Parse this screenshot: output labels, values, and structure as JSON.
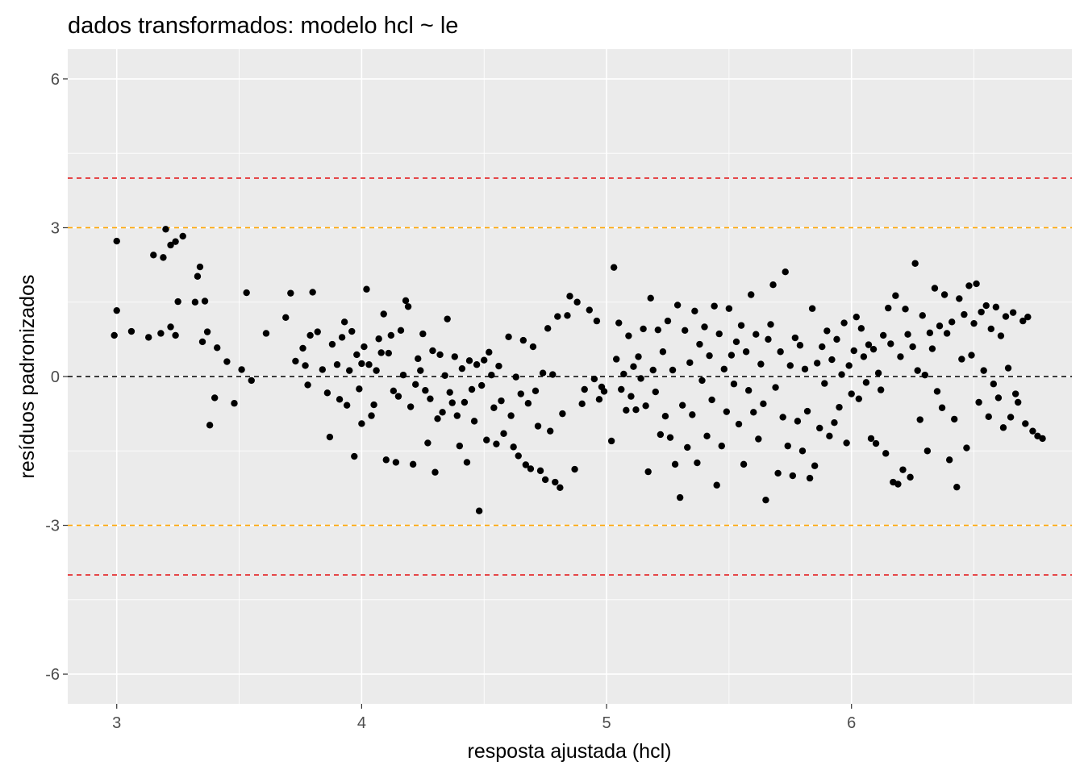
{
  "colors": {
    "panel_background": "#EBEBEB",
    "grid": "#FFFFFF",
    "points": "#000000",
    "ref_zero": "#000000",
    "ref_3": "#FFA500",
    "ref_4": "#E41A1C",
    "tick_text": "#4D4D4D"
  },
  "chart_data": {
    "type": "scatter",
    "title": "dados transformados: modelo hcl ~ le",
    "xlabel": "resposta ajustada (hcl)",
    "ylabel": "resíduos padronizados",
    "xlim": [
      2.8,
      6.9
    ],
    "ylim": [
      -6.6,
      6.6
    ],
    "x_ticks": [
      3,
      4,
      5,
      6
    ],
    "x_tick_labels": [
      "3",
      "4",
      "5",
      "6"
    ],
    "y_ticks": [
      -6,
      -3,
      0,
      3,
      6
    ],
    "y_tick_labels": [
      "-6",
      "-3",
      "0",
      "3",
      "6"
    ],
    "grid": true,
    "legend": "none",
    "reference_lines": [
      {
        "y": 0,
        "color": "#000000",
        "style": "dashed"
      },
      {
        "y": 3,
        "color": "#FFA500",
        "style": "dashed"
      },
      {
        "y": -3,
        "color": "#FFA500",
        "style": "dashed"
      },
      {
        "y": 4,
        "color": "#E41A1C",
        "style": "dashed"
      },
      {
        "y": -4,
        "color": "#E41A1C",
        "style": "dashed"
      }
    ],
    "points": [
      [
        2.99,
        0.83
      ],
      [
        3.0,
        2.73
      ],
      [
        3.0,
        1.33
      ],
      [
        3.06,
        0.91
      ],
      [
        3.13,
        0.79
      ],
      [
        3.18,
        0.87
      ],
      [
        3.15,
        2.45
      ],
      [
        3.19,
        2.4
      ],
      [
        3.2,
        2.97
      ],
      [
        3.22,
        2.65
      ],
      [
        3.24,
        2.72
      ],
      [
        3.27,
        2.83
      ],
      [
        3.22,
        1.0
      ],
      [
        3.25,
        1.51
      ],
      [
        3.24,
        0.83
      ],
      [
        3.32,
        1.5
      ],
      [
        3.33,
        2.02
      ],
      [
        3.34,
        2.21
      ],
      [
        3.35,
        0.7
      ],
      [
        3.36,
        1.52
      ],
      [
        3.37,
        0.9
      ],
      [
        3.38,
        -0.98
      ],
      [
        3.4,
        -0.43
      ],
      [
        3.41,
        0.58
      ],
      [
        3.45,
        0.3
      ],
      [
        3.48,
        -0.54
      ],
      [
        3.51,
        0.14
      ],
      [
        3.53,
        1.69
      ],
      [
        3.55,
        -0.08
      ],
      [
        3.61,
        0.87
      ],
      [
        3.69,
        1.19
      ],
      [
        3.71,
        1.68
      ],
      [
        3.73,
        0.31
      ],
      [
        3.76,
        0.57
      ],
      [
        3.77,
        0.22
      ],
      [
        3.78,
        -0.17
      ],
      [
        3.79,
        0.83
      ],
      [
        3.8,
        1.7
      ],
      [
        3.82,
        0.9
      ],
      [
        3.84,
        0.14
      ],
      [
        3.86,
        -0.33
      ],
      [
        3.87,
        -1.22
      ],
      [
        3.88,
        0.65
      ],
      [
        3.9,
        0.24
      ],
      [
        3.91,
        -0.46
      ],
      [
        3.92,
        0.79
      ],
      [
        3.93,
        1.1
      ],
      [
        3.94,
        -0.58
      ],
      [
        3.95,
        0.12
      ],
      [
        3.96,
        0.91
      ],
      [
        3.97,
        -1.61
      ],
      [
        3.98,
        0.44
      ],
      [
        3.99,
        -0.25
      ],
      [
        4.0,
        0.26
      ],
      [
        4.0,
        -0.95
      ],
      [
        4.01,
        0.6
      ],
      [
        4.02,
        1.76
      ],
      [
        4.03,
        0.24
      ],
      [
        4.04,
        -0.79
      ],
      [
        4.05,
        -0.57
      ],
      [
        4.06,
        0.12
      ],
      [
        4.07,
        0.76
      ],
      [
        4.08,
        0.48
      ],
      [
        4.09,
        1.26
      ],
      [
        4.1,
        -1.68
      ],
      [
        4.11,
        0.47
      ],
      [
        4.12,
        0.83
      ],
      [
        4.13,
        -0.29
      ],
      [
        4.14,
        -1.73
      ],
      [
        4.15,
        -0.4
      ],
      [
        4.16,
        0.93
      ],
      [
        4.17,
        0.03
      ],
      [
        4.18,
        1.53
      ],
      [
        4.19,
        1.41
      ],
      [
        4.2,
        -0.61
      ],
      [
        4.21,
        -1.77
      ],
      [
        4.22,
        -0.16
      ],
      [
        4.23,
        0.36
      ],
      [
        4.24,
        0.12
      ],
      [
        4.25,
        0.86
      ],
      [
        4.26,
        -0.28
      ],
      [
        4.27,
        -1.34
      ],
      [
        4.28,
        -0.45
      ],
      [
        4.29,
        0.52
      ],
      [
        4.3,
        -1.93
      ],
      [
        4.31,
        -0.85
      ],
      [
        4.32,
        0.44
      ],
      [
        4.33,
        -0.72
      ],
      [
        4.34,
        0.02
      ],
      [
        4.35,
        1.16
      ],
      [
        4.36,
        -0.32
      ],
      [
        4.37,
        -0.53
      ],
      [
        4.38,
        0.4
      ],
      [
        4.39,
        -0.79
      ],
      [
        4.4,
        -1.4
      ],
      [
        4.41,
        0.16
      ],
      [
        4.42,
        -0.52
      ],
      [
        4.43,
        -1.73
      ],
      [
        4.44,
        0.32
      ],
      [
        4.45,
        -0.26
      ],
      [
        4.46,
        -0.9
      ],
      [
        4.47,
        0.24
      ],
      [
        4.48,
        -2.71
      ],
      [
        4.49,
        -0.18
      ],
      [
        4.5,
        0.33
      ],
      [
        4.51,
        -1.28
      ],
      [
        4.52,
        0.49
      ],
      [
        4.53,
        0.03
      ],
      [
        4.54,
        -0.63
      ],
      [
        4.55,
        -1.36
      ],
      [
        4.56,
        0.21
      ],
      [
        4.57,
        -0.49
      ],
      [
        4.58,
        -1.15
      ],
      [
        4.6,
        0.8
      ],
      [
        4.61,
        -0.79
      ],
      [
        4.62,
        -1.42
      ],
      [
        4.63,
        -0.01
      ],
      [
        4.64,
        -1.6
      ],
      [
        4.65,
        -0.35
      ],
      [
        4.66,
        0.73
      ],
      [
        4.67,
        -1.78
      ],
      [
        4.68,
        -0.54
      ],
      [
        4.69,
        -1.86
      ],
      [
        4.7,
        0.6
      ],
      [
        4.71,
        -0.29
      ],
      [
        4.72,
        -1.0
      ],
      [
        4.73,
        -1.9
      ],
      [
        4.74,
        0.07
      ],
      [
        4.75,
        -2.08
      ],
      [
        4.76,
        0.97
      ],
      [
        4.77,
        -1.1
      ],
      [
        4.78,
        0.04
      ],
      [
        4.79,
        -2.13
      ],
      [
        4.8,
        1.21
      ],
      [
        4.81,
        -2.24
      ],
      [
        4.82,
        -0.75
      ],
      [
        4.84,
        1.23
      ],
      [
        4.85,
        1.62
      ],
      [
        4.87,
        -1.87
      ],
      [
        4.88,
        1.5
      ],
      [
        4.9,
        -0.55
      ],
      [
        4.91,
        -0.26
      ],
      [
        4.93,
        1.34
      ],
      [
        4.95,
        -0.05
      ],
      [
        4.96,
        1.12
      ],
      [
        4.97,
        -0.46
      ],
      [
        4.98,
        -0.21
      ],
      [
        4.99,
        -0.3
      ],
      [
        5.02,
        -1.3
      ],
      [
        5.03,
        2.2
      ],
      [
        5.04,
        0.35
      ],
      [
        5.05,
        1.08
      ],
      [
        5.06,
        -0.26
      ],
      [
        5.07,
        0.05
      ],
      [
        5.08,
        -0.68
      ],
      [
        5.09,
        0.82
      ],
      [
        5.1,
        -0.4
      ],
      [
        5.11,
        0.2
      ],
      [
        5.12,
        -0.67
      ],
      [
        5.13,
        0.4
      ],
      [
        5.14,
        -0.04
      ],
      [
        5.15,
        0.96
      ],
      [
        5.16,
        -0.59
      ],
      [
        5.17,
        -1.92
      ],
      [
        5.18,
        1.58
      ],
      [
        5.19,
        0.13
      ],
      [
        5.2,
        -0.31
      ],
      [
        5.21,
        0.94
      ],
      [
        5.22,
        -1.17
      ],
      [
        5.23,
        0.5
      ],
      [
        5.24,
        -0.8
      ],
      [
        5.25,
        1.12
      ],
      [
        5.26,
        -1.23
      ],
      [
        5.27,
        0.13
      ],
      [
        5.28,
        -1.77
      ],
      [
        5.29,
        1.44
      ],
      [
        5.3,
        -2.44
      ],
      [
        5.31,
        -0.58
      ],
      [
        5.32,
        0.93
      ],
      [
        5.33,
        -1.43
      ],
      [
        5.34,
        0.28
      ],
      [
        5.35,
        -0.77
      ],
      [
        5.36,
        1.32
      ],
      [
        5.37,
        -1.74
      ],
      [
        5.38,
        0.65
      ],
      [
        5.39,
        -0.08
      ],
      [
        5.4,
        1.0
      ],
      [
        5.41,
        -1.2
      ],
      [
        5.42,
        0.42
      ],
      [
        5.43,
        -0.47
      ],
      [
        5.44,
        1.42
      ],
      [
        5.45,
        -2.19
      ],
      [
        5.46,
        0.86
      ],
      [
        5.47,
        -1.4
      ],
      [
        5.48,
        0.15
      ],
      [
        5.49,
        -0.71
      ],
      [
        5.5,
        1.37
      ],
      [
        5.51,
        0.43
      ],
      [
        5.52,
        -0.15
      ],
      [
        5.53,
        0.7
      ],
      [
        5.54,
        -0.96
      ],
      [
        5.55,
        1.03
      ],
      [
        5.56,
        -1.77
      ],
      [
        5.57,
        0.5
      ],
      [
        5.58,
        -0.28
      ],
      [
        5.59,
        1.65
      ],
      [
        5.6,
        -0.72
      ],
      [
        5.61,
        0.85
      ],
      [
        5.62,
        -1.26
      ],
      [
        5.63,
        0.25
      ],
      [
        5.64,
        -0.55
      ],
      [
        5.65,
        -2.49
      ],
      [
        5.66,
        0.75
      ],
      [
        5.67,
        1.05
      ],
      [
        5.68,
        1.85
      ],
      [
        5.69,
        -0.22
      ],
      [
        5.7,
        -1.95
      ],
      [
        5.71,
        0.5
      ],
      [
        5.72,
        -0.82
      ],
      [
        5.73,
        2.11
      ],
      [
        5.74,
        -1.4
      ],
      [
        5.75,
        0.22
      ],
      [
        5.76,
        -2.0
      ],
      [
        5.77,
        0.78
      ],
      [
        5.78,
        -0.9
      ],
      [
        5.79,
        0.63
      ],
      [
        5.8,
        -1.5
      ],
      [
        5.81,
        0.15
      ],
      [
        5.82,
        -0.7
      ],
      [
        5.83,
        -2.05
      ],
      [
        5.84,
        1.37
      ],
      [
        5.85,
        -1.8
      ],
      [
        5.86,
        0.27
      ],
      [
        5.87,
        -1.04
      ],
      [
        5.88,
        0.6
      ],
      [
        5.89,
        -0.14
      ],
      [
        5.9,
        0.92
      ],
      [
        5.91,
        -1.2
      ],
      [
        5.92,
        0.34
      ],
      [
        5.93,
        -0.93
      ],
      [
        5.94,
        0.75
      ],
      [
        5.95,
        -0.62
      ],
      [
        5.96,
        0.04
      ],
      [
        5.97,
        1.08
      ],
      [
        5.98,
        -1.34
      ],
      [
        5.99,
        0.22
      ],
      [
        6.0,
        -0.35
      ],
      [
        6.01,
        0.52
      ],
      [
        6.02,
        1.2
      ],
      [
        6.03,
        -0.45
      ],
      [
        6.04,
        0.97
      ],
      [
        6.05,
        0.4
      ],
      [
        6.06,
        -0.12
      ],
      [
        6.07,
        0.64
      ],
      [
        6.08,
        -1.25
      ],
      [
        6.09,
        0.55
      ],
      [
        6.1,
        -1.35
      ],
      [
        6.11,
        0.07
      ],
      [
        6.12,
        -0.27
      ],
      [
        6.13,
        0.83
      ],
      [
        6.14,
        -1.55
      ],
      [
        6.15,
        1.38
      ],
      [
        6.16,
        0.66
      ],
      [
        6.17,
        -2.13
      ],
      [
        6.18,
        1.63
      ],
      [
        6.19,
        -2.17
      ],
      [
        6.2,
        0.4
      ],
      [
        6.21,
        -1.88
      ],
      [
        6.22,
        1.36
      ],
      [
        6.23,
        0.85
      ],
      [
        6.24,
        -2.03
      ],
      [
        6.25,
        0.6
      ],
      [
        6.26,
        2.28
      ],
      [
        6.27,
        0.12
      ],
      [
        6.28,
        -0.87
      ],
      [
        6.29,
        1.23
      ],
      [
        6.3,
        0.03
      ],
      [
        6.31,
        -1.5
      ],
      [
        6.32,
        0.88
      ],
      [
        6.33,
        0.56
      ],
      [
        6.34,
        1.78
      ],
      [
        6.35,
        -0.3
      ],
      [
        6.36,
        1.02
      ],
      [
        6.37,
        -0.63
      ],
      [
        6.38,
        1.65
      ],
      [
        6.39,
        0.87
      ],
      [
        6.4,
        -1.68
      ],
      [
        6.41,
        1.1
      ],
      [
        6.42,
        -0.86
      ],
      [
        6.43,
        -2.23
      ],
      [
        6.44,
        1.57
      ],
      [
        6.45,
        0.35
      ],
      [
        6.46,
        1.25
      ],
      [
        6.47,
        -1.44
      ],
      [
        6.48,
        1.83
      ],
      [
        6.49,
        0.43
      ],
      [
        6.5,
        1.07
      ],
      [
        6.51,
        1.87
      ],
      [
        6.52,
        -0.52
      ],
      [
        6.53,
        1.3
      ],
      [
        6.54,
        0.12
      ],
      [
        6.55,
        1.43
      ],
      [
        6.56,
        -0.81
      ],
      [
        6.57,
        0.96
      ],
      [
        6.58,
        -0.15
      ],
      [
        6.59,
        1.4
      ],
      [
        6.6,
        -0.43
      ],
      [
        6.61,
        0.82
      ],
      [
        6.62,
        -1.03
      ],
      [
        6.63,
        1.21
      ],
      [
        6.64,
        0.17
      ],
      [
        6.65,
        -0.82
      ],
      [
        6.66,
        1.29
      ],
      [
        6.67,
        -0.35
      ],
      [
        6.68,
        -0.52
      ],
      [
        6.7,
        1.12
      ],
      [
        6.71,
        -0.95
      ],
      [
        6.72,
        1.2
      ],
      [
        6.74,
        -1.1
      ],
      [
        6.76,
        -1.2
      ],
      [
        6.78,
        -1.25
      ]
    ]
  }
}
